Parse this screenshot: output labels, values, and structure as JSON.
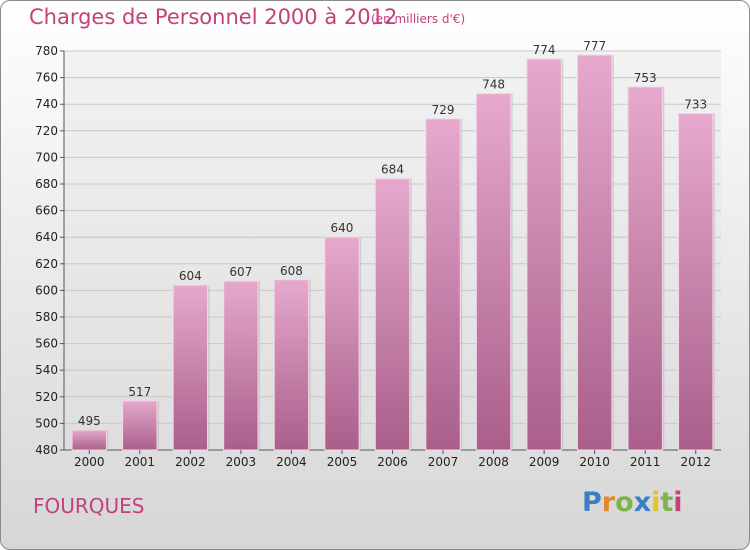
{
  "chart_data": {
    "type": "bar",
    "title": "Charges de Personnel 2000 à 2012",
    "subtitle": "(en milliers d'€)",
    "categories": [
      "2000",
      "2001",
      "2002",
      "2003",
      "2004",
      "2005",
      "2006",
      "2007",
      "2008",
      "2009",
      "2010",
      "2011",
      "2012"
    ],
    "values": [
      495,
      517,
      604,
      607,
      608,
      640,
      684,
      729,
      748,
      774,
      777,
      753,
      733
    ],
    "ylim": [
      480,
      780
    ],
    "yticks": [
      480,
      500,
      520,
      540,
      560,
      580,
      600,
      620,
      640,
      660,
      680,
      700,
      720,
      740,
      760,
      780
    ],
    "grid": true,
    "bar_color": "#d98fb8"
  },
  "location": "FOURQUES",
  "logo": {
    "letters": [
      "P",
      "r",
      "o",
      "x",
      "i",
      "t",
      "i"
    ],
    "colors": [
      "#3a7fc4",
      "#e9862a",
      "#7ab648",
      "#3a7fc4",
      "#e8c21f",
      "#7ab648",
      "#c2417a"
    ]
  },
  "colors": {
    "accent": "#c2417a"
  }
}
